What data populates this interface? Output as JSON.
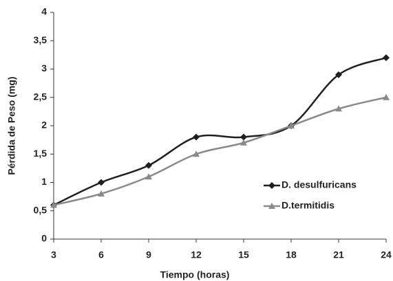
{
  "chart_data": {
    "type": "line",
    "x_label": "Tiempo (horas)",
    "y_label": "Pérdida de Peso (mg)",
    "x": [
      3,
      6,
      9,
      12,
      15,
      18,
      21,
      24
    ],
    "series": [
      {
        "name": "D. desulfuricans",
        "color": "#1f1f1f",
        "marker": "diamond",
        "values": [
          0.6,
          1.0,
          1.3,
          1.8,
          1.8,
          2.0,
          2.9,
          3.2
        ]
      },
      {
        "name": "D.termitidis",
        "color": "#8a8a8a",
        "marker": "triangle",
        "values": [
          0.6,
          0.8,
          1.1,
          1.5,
          1.7,
          2.0,
          2.3,
          2.5
        ]
      }
    ],
    "xlim": [
      3,
      24
    ],
    "xticks": [
      3,
      6,
      9,
      12,
      15,
      18,
      21,
      24
    ],
    "ylim": [
      0,
      4
    ],
    "yticks": [
      0,
      {
        "value": 0.5,
        "label": "0,5"
      },
      1,
      {
        "value": 1.5,
        "label": "1,5"
      },
      2,
      {
        "value": 2.5,
        "label": "2,5"
      },
      3,
      {
        "value": 3.5,
        "label": "3,5"
      },
      4
    ],
    "grid": false,
    "smooth": true,
    "legend": "right"
  }
}
